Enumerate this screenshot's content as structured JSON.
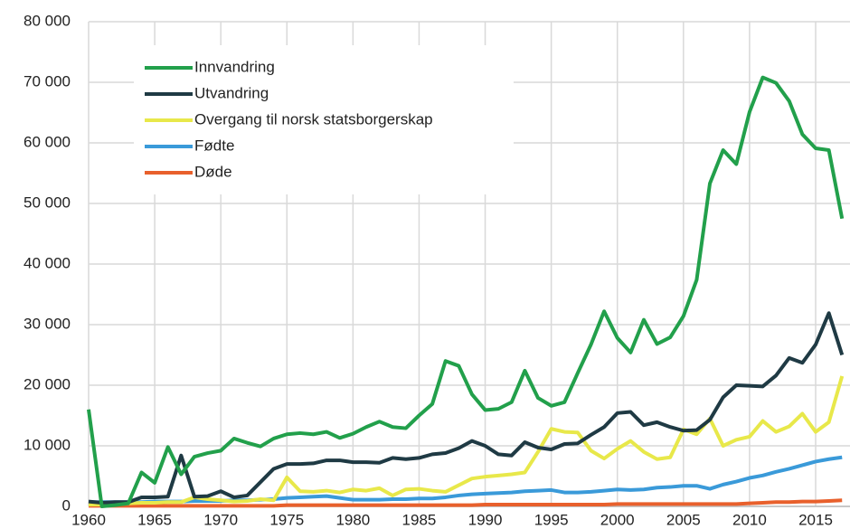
{
  "chart_data": {
    "type": "line",
    "x": [
      1960,
      1961,
      1962,
      1963,
      1964,
      1965,
      1966,
      1967,
      1968,
      1969,
      1970,
      1971,
      1972,
      1973,
      1974,
      1975,
      1976,
      1977,
      1978,
      1979,
      1980,
      1981,
      1982,
      1983,
      1984,
      1985,
      1986,
      1987,
      1988,
      1989,
      1990,
      1991,
      1992,
      1993,
      1994,
      1995,
      1996,
      1997,
      1998,
      1999,
      2000,
      2001,
      2002,
      2003,
      2004,
      2005,
      2006,
      2007,
      2008,
      2009,
      2010,
      2011,
      2012,
      2013,
      2014,
      2015,
      2016,
      2017
    ],
    "series": [
      {
        "name": "Innvandring",
        "color": "#22a04b",
        "values": [
          16000,
          0,
          200,
          500,
          5600,
          3900,
          9800,
          5300,
          8200,
          8800,
          9200,
          11200,
          10500,
          9900,
          11200,
          11900,
          12100,
          11900,
          12300,
          11300,
          12000,
          13100,
          14000,
          13100,
          12900,
          15000,
          16900,
          24000,
          23200,
          18500,
          15900,
          16100,
          17200,
          22400,
          17900,
          16600,
          17200,
          22000,
          26700,
          32200,
          27800,
          25400,
          30800,
          26800,
          27900,
          31400,
          37400,
          53300,
          58800,
          56500,
          65100,
          70800,
          69900,
          66900,
          61400,
          59100,
          58800,
          47500
        ]
      },
      {
        "name": "Utvandring",
        "color": "#1f3a44",
        "values": [
          800,
          600,
          700,
          700,
          1500,
          1500,
          1600,
          8400,
          1600,
          1700,
          2500,
          1500,
          1800,
          4000,
          6200,
          7000,
          7000,
          7100,
          7600,
          7600,
          7300,
          7300,
          7200,
          8000,
          7800,
          8000,
          8600,
          8800,
          9600,
          10800,
          10000,
          8600,
          8400,
          10600,
          9700,
          9400,
          10300,
          10400,
          11800,
          13100,
          15400,
          15600,
          13400,
          13900,
          13100,
          12500,
          12600,
          14300,
          18000,
          20000,
          19900,
          19800,
          21600,
          24500,
          23700,
          26700,
          31900,
          25000
        ]
      },
      {
        "name": "Overgang til norsk statsborgerskap",
        "color": "#e8e84a",
        "values": [
          300,
          300,
          400,
          500,
          600,
          600,
          700,
          700,
          1500,
          1200,
          1000,
          800,
          900,
          1200,
          1000,
          4800,
          2500,
          2400,
          2600,
          2300,
          2800,
          2600,
          3000,
          1800,
          2800,
          2900,
          2600,
          2400,
          3500,
          4600,
          4900,
          5100,
          5300,
          5600,
          9000,
          12800,
          12300,
          12200,
          9200,
          7900,
          9500,
          10800,
          9000,
          7800,
          8100,
          12700,
          11900,
          14500,
          10000,
          11000,
          11500,
          14100,
          12300,
          13200,
          15300,
          12300,
          13900,
          21500
        ]
      },
      {
        "name": "Fødte",
        "color": "#3a9ad9",
        "values": [
          700,
          700,
          700,
          700,
          700,
          800,
          800,
          800,
          900,
          900,
          900,
          1000,
          1000,
          1100,
          1200,
          1400,
          1500,
          1600,
          1700,
          1400,
          1100,
          1100,
          1100,
          1200,
          1200,
          1300,
          1300,
          1500,
          1800,
          2000,
          2100,
          2200,
          2300,
          2500,
          2600,
          2700,
          2300,
          2300,
          2400,
          2600,
          2800,
          2700,
          2800,
          3100,
          3200,
          3400,
          3400,
          2900,
          3600,
          4100,
          4700,
          5100,
          5700,
          6200,
          6800,
          7400,
          7800,
          8100
        ]
      },
      {
        "name": "Døde",
        "color": "#e8602c",
        "values": [
          100,
          100,
          100,
          100,
          100,
          100,
          100,
          100,
          100,
          100,
          100,
          100,
          100,
          100,
          100,
          200,
          200,
          200,
          200,
          200,
          200,
          200,
          200,
          200,
          200,
          200,
          200,
          200,
          200,
          200,
          300,
          300,
          300,
          300,
          300,
          300,
          300,
          300,
          300,
          300,
          400,
          400,
          400,
          400,
          400,
          400,
          400,
          400,
          400,
          400,
          500,
          600,
          700,
          700,
          800,
          800,
          900,
          1000
        ]
      }
    ],
    "xlim": [
      1960,
      2017.6
    ],
    "xticks": [
      1960,
      1965,
      1970,
      1975,
      1980,
      1985,
      1990,
      1995,
      2000,
      2005,
      2010,
      2015
    ],
    "ylim": [
      0,
      80000
    ],
    "yticks": [
      0,
      {
        "value": 10000,
        "label": "10 000"
      },
      {
        "value": 20000,
        "label": "20 000"
      },
      {
        "value": 30000,
        "label": "30 000"
      },
      {
        "value": 40000,
        "label": "40 000"
      },
      {
        "value": 50000,
        "label": "50 000"
      },
      {
        "value": 60000,
        "label": "60 000"
      },
      {
        "value": 70000,
        "label": "70 000"
      },
      {
        "value": 80000,
        "label": "80 000"
      }
    ],
    "grid": true,
    "legend": "upper left"
  }
}
